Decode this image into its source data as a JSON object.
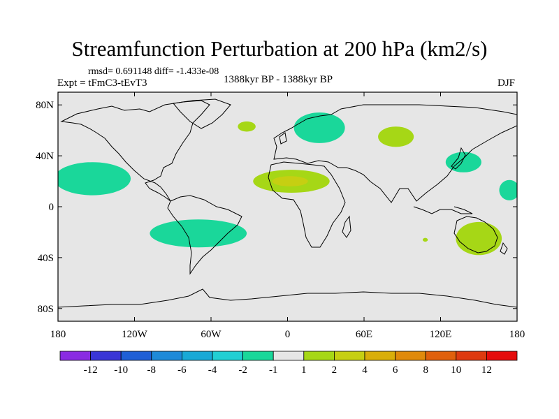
{
  "title": "Streamfunction Perturbation at 200 hPa (km2/s)",
  "stats": "rmsd= 0.691148 diff= -1.433e-08",
  "experiment": "Expt = tFmC3-tEvT3",
  "period": "1388kyr BP - 1388kyr BP",
  "season": "DJF",
  "lat_ticks": [
    "80N",
    "40N",
    "0",
    "40S",
    "80S"
  ],
  "lon_ticks": [
    "180",
    "120W",
    "60W",
    "0",
    "60E",
    "120E",
    "180"
  ],
  "colorbar": {
    "labels": [
      "-12",
      "-10",
      "-8",
      "-6",
      "-4",
      "-2",
      "-1",
      "1",
      "2",
      "4",
      "6",
      "8",
      "10",
      "12"
    ],
    "colors": [
      "#8a2be2",
      "#3a36d6",
      "#1f5fd6",
      "#1e8ad8",
      "#19a9d6",
      "#22cfd3",
      "#1ad79a",
      "#e6e6e6",
      "#a6d716",
      "#c6cf12",
      "#d9ae0a",
      "#e08a0b",
      "#e0600c",
      "#de3a10",
      "#e50c0c"
    ]
  },
  "colors": {
    "background": "#e6e6e6",
    "neg_1_to_neg_2": "#1ad79a",
    "pos_1_to_2": "#a6d716",
    "pos_2_to_4": "#c6cf12"
  },
  "map_data": {
    "projection": "cylindrical-equidistant",
    "lon_range": [
      -180,
      180
    ],
    "lat_range": [
      -90,
      90
    ],
    "anomalies": [
      {
        "region": "NE Pacific",
        "lon": -153,
        "lat": 22,
        "dlon": 30,
        "dlat": 13,
        "level": "-1 to -2"
      },
      {
        "region": "South Atlantic / S. America",
        "lon": -70,
        "lat": -21,
        "dlon": 38,
        "dlat": 11,
        "level": "-1 to -2"
      },
      {
        "region": "Europe / Scandinavia",
        "lon": 25,
        "lat": 62,
        "dlon": 20,
        "dlat": 12,
        "level": "-1 to -2"
      },
      {
        "region": "Japan",
        "lon": 138,
        "lat": 35,
        "dlon": 14,
        "dlat": 8,
        "level": "-1 to -2"
      },
      {
        "region": "West Pacific edge",
        "lon": 174,
        "lat": 13,
        "dlon": 8,
        "dlat": 8,
        "level": "-1 to -2"
      },
      {
        "region": "North Africa",
        "lon": 3,
        "lat": 20,
        "dlon": 30,
        "dlat": 9,
        "level": "1 to 2"
      },
      {
        "region": "Sahara core",
        "lon": 2,
        "lat": 20,
        "dlon": 14,
        "dlat": 4,
        "level": "2 to 4"
      },
      {
        "region": "North Atlantic",
        "lon": -32,
        "lat": 63,
        "dlon": 7,
        "dlat": 4,
        "level": "1 to 2"
      },
      {
        "region": "Central Asia",
        "lon": 85,
        "lat": 55,
        "dlon": 14,
        "dlat": 8,
        "level": "1 to 2"
      },
      {
        "region": "Australia",
        "lon": 150,
        "lat": -25,
        "dlon": 18,
        "dlat": 13,
        "level": "1 to 2"
      },
      {
        "region": "Indian Ocean dot",
        "lon": 108,
        "lat": -26,
        "dlon": 2,
        "dlat": 1.5,
        "level": "1 to 2"
      }
    ]
  }
}
